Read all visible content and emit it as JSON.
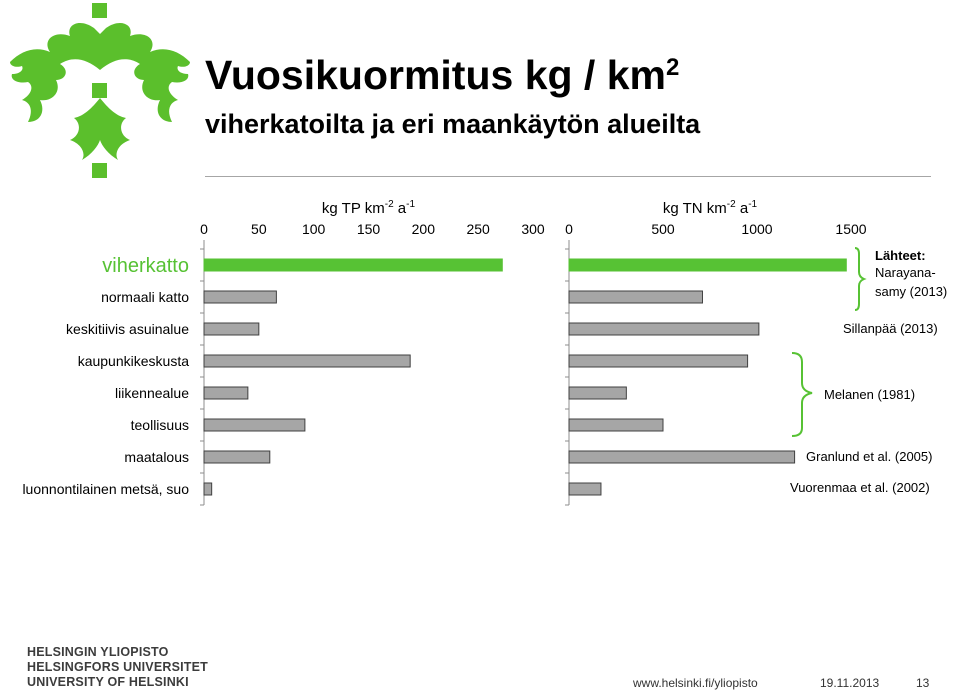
{
  "slide": {
    "title": "Vuosikuormitus kg / km",
    "title_sup": "2",
    "subtitle": "viherkatoilta ja eri maankäytön alueilta"
  },
  "colors": {
    "accent_green": "#57c234",
    "bar_gray": "#a6a6a6",
    "bar_stroke": "#404040",
    "axis": "#8c8c8c",
    "rule": "#a6a6a6",
    "logo_green": "#5bbf2c"
  },
  "chart_data": [
    {
      "type": "bar",
      "orientation": "horizontal",
      "title": "kg TP km",
      "title_sup": [
        "-2",
        "-1"
      ],
      "title_mid": " a",
      "categories": [
        "viherkatto",
        "normaali katto",
        "keskitiivis asuinalue",
        "kaupunkikeskusta",
        "liikennealue",
        "teollisuus",
        "maatalous",
        "luonnontilainen metsä, suo"
      ],
      "values": [
        272,
        66,
        50,
        188,
        40,
        92,
        60,
        7
      ],
      "highlight": [
        "viherkatto"
      ],
      "xlim": [
        0,
        300
      ],
      "xticks": [
        "0",
        "50",
        "100",
        "150",
        "200",
        "250",
        "300"
      ],
      "xtick_values": [
        0,
        50,
        100,
        150,
        200,
        250,
        300
      ],
      "grid": false
    },
    {
      "type": "bar",
      "orientation": "horizontal",
      "title": "kg TN km",
      "title_sup": [
        "-2",
        "-1"
      ],
      "title_mid": " a",
      "categories": [
        "viherkatto",
        "normaali katto",
        "keskitiivis asuinalue",
        "kaupunkikeskusta",
        "liikennealue",
        "teollisuus",
        "maatalous",
        "luonnontilainen metsä, suo"
      ],
      "values": [
        1475,
        710,
        1010,
        950,
        305,
        500,
        1200,
        170
      ],
      "highlight": [
        "viherkatto"
      ],
      "xlim": [
        0,
        1500
      ],
      "xticks": [
        "0",
        "500",
        "1000",
        "1500"
      ],
      "xtick_values": [
        0,
        500,
        1000,
        1500
      ],
      "grid": false
    }
  ],
  "sources": {
    "heading": "Lähteet:",
    "narayanasamy_line1": "Narayana-",
    "narayanasamy_line2": "samy (2013)",
    "sillanpaa": "Sillanpää (2013)",
    "melanen": "Melanen (1981)",
    "granlund": "Granlund et al. (2005)",
    "vuorenmaa": "Vuorenmaa et al. (2002)"
  },
  "university": {
    "line1": "HELSINGIN YLIOPISTO",
    "line2": "HELSINGFORS UNIVERSITET",
    "line3": "UNIVERSITY OF HELSINKI"
  },
  "footer": {
    "url": "www.helsinki.fi/yliopisto",
    "date": "19.11.2013",
    "page": "13"
  }
}
